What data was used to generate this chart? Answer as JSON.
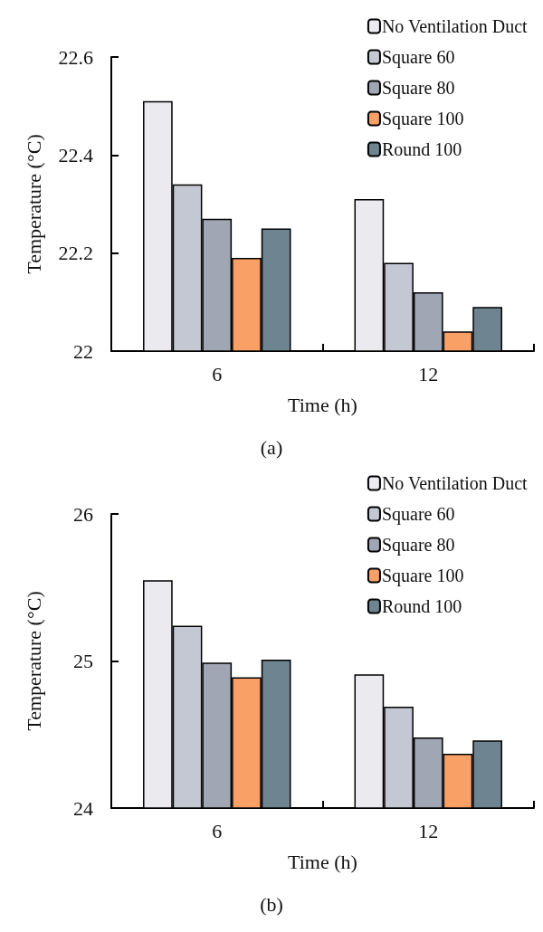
{
  "chart_data": [
    {
      "type": "bar",
      "xlabel": "Time (h)",
      "ylabel": "Temperature (°C)",
      "categories": [
        "6",
        "12"
      ],
      "series": [
        {
          "name": "No Ventilation Duct",
          "color": "#ebebef",
          "values": [
            22.51,
            22.31
          ]
        },
        {
          "name": "Square 60",
          "color": "#c3c8d3",
          "values": [
            22.34,
            22.18
          ]
        },
        {
          "name": "Square 80",
          "color": "#a0a6b3",
          "values": [
            22.27,
            22.12
          ]
        },
        {
          "name": "Square 100",
          "color": "#f9a066",
          "values": [
            22.19,
            22.04
          ]
        },
        {
          "name": "Round 100",
          "color": "#6e8490",
          "values": [
            22.25,
            22.09
          ]
        }
      ],
      "ylim": [
        22,
        22.6
      ],
      "yticks": [
        22,
        22.2,
        22.4,
        22.6
      ],
      "grid": false,
      "legend": "top right",
      "annotations": [
        "(a)"
      ]
    },
    {
      "type": "bar",
      "xlabel": "Time (h)",
      "ylabel": "Temperature (°C)",
      "categories": [
        "6",
        "12"
      ],
      "series": [
        {
          "name": "No Ventilation Duct",
          "color": "#ebebef",
          "values": [
            25.55,
            24.91
          ]
        },
        {
          "name": "Square 60",
          "color": "#c3c8d3",
          "values": [
            25.24,
            24.69
          ]
        },
        {
          "name": "Square 80",
          "color": "#a0a6b3",
          "values": [
            24.99,
            24.48
          ]
        },
        {
          "name": "Square 100",
          "color": "#f9a066",
          "values": [
            24.89,
            24.37
          ]
        },
        {
          "name": "Round 100",
          "color": "#6e8490",
          "values": [
            25.01,
            24.46
          ]
        }
      ],
      "ylim": [
        24,
        26
      ],
      "yticks": [
        24,
        25,
        26
      ],
      "grid": false,
      "legend": "top right",
      "annotations": [
        "(b)"
      ]
    }
  ]
}
